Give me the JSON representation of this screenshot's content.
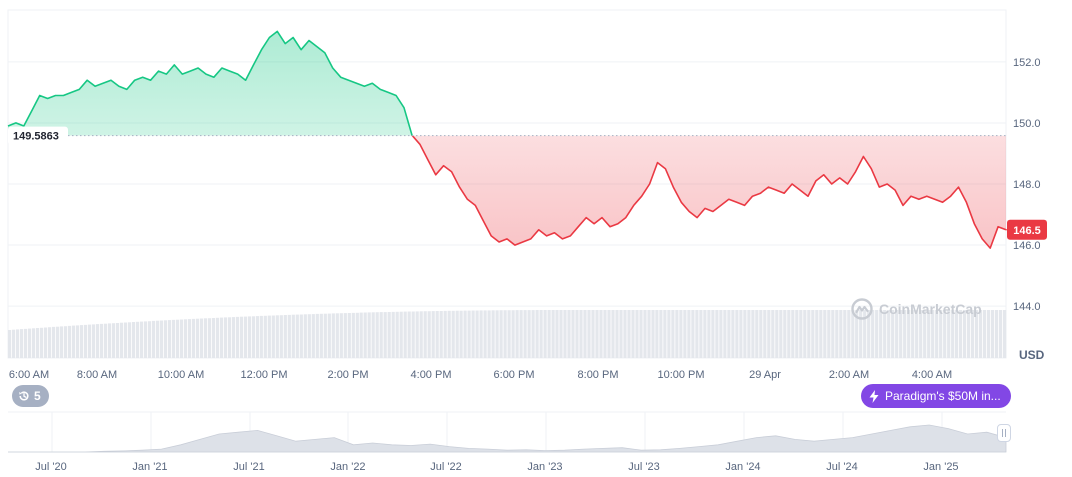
{
  "chart_data": {
    "type": "area",
    "currency": "USD",
    "y_axis": {
      "ticks": [
        144.0,
        146.0,
        148.0,
        150.0,
        152.0
      ],
      "tick_labels": [
        "144.0",
        "146.0",
        "148.0",
        "150.0",
        "152.0"
      ],
      "range": [
        142.3,
        153.7
      ]
    },
    "x_axis": {
      "tick_labels": [
        "6:00 AM",
        "8:00 AM",
        "10:00 AM",
        "12:00 PM",
        "2:00 PM",
        "4:00 PM",
        "6:00 PM",
        "8:00 PM",
        "10:00 PM",
        "29 Apr",
        "2:00 AM",
        "4:00 AM"
      ]
    },
    "reference_price": 149.5863,
    "reference_label": "149.5863",
    "current_price": 146.5,
    "current_label": "146.5",
    "colors": {
      "above": "#16c784",
      "below": "#ea3943",
      "grid": "#eff2f5",
      "volume": "#e4e7ec",
      "navigator": "#dde1e8"
    },
    "series": [
      {
        "values": [
          149.9,
          150.0,
          149.9,
          150.4,
          150.9,
          150.8,
          150.9,
          150.9,
          151.0,
          151.1,
          151.4,
          151.2,
          151.3,
          151.4,
          151.2,
          151.1,
          151.4,
          151.5,
          151.4,
          151.7,
          151.6,
          151.9,
          151.6,
          151.7,
          151.8,
          151.6,
          151.5,
          151.8,
          151.7,
          151.6,
          151.4,
          151.9,
          152.4,
          152.8,
          153.0,
          152.6,
          152.8,
          152.4,
          152.7,
          152.5,
          152.3,
          151.8,
          151.5,
          151.4,
          151.3,
          151.2,
          151.3,
          151.1,
          151.0,
          150.9,
          150.5,
          149.6,
          149.3,
          148.8,
          148.3,
          148.6,
          148.4,
          147.9,
          147.5,
          147.3,
          146.8,
          146.3,
          146.1,
          146.2,
          146.0,
          146.1,
          146.2,
          146.5,
          146.3,
          146.4,
          146.2,
          146.3,
          146.6,
          146.9,
          146.7,
          146.9,
          146.6,
          146.7,
          146.9,
          147.3,
          147.6,
          148.0,
          148.7,
          148.5,
          147.9,
          147.4,
          147.1,
          146.9,
          147.2,
          147.1,
          147.3,
          147.5,
          147.4,
          147.3,
          147.6,
          147.7,
          147.9,
          147.8,
          147.7,
          148.0,
          147.8,
          147.6,
          148.1,
          148.3,
          148.0,
          148.2,
          148.0,
          148.4,
          148.9,
          148.5,
          147.9,
          148.0,
          147.8,
          147.3,
          147.6,
          147.5,
          147.6,
          147.5,
          147.4,
          147.6,
          147.9,
          147.4,
          146.7,
          146.2,
          145.9,
          146.6,
          146.5
        ]
      }
    ],
    "volume": {
      "start": 0.45,
      "end": 0.78
    },
    "navigator": {
      "tick_labels": [
        "Jul '20",
        "Jan '21",
        "Jul '21",
        "Jan '22",
        "Jul '22",
        "Jan '23",
        "Jul '23",
        "Jan '24",
        "Jul '24",
        "Jan '25"
      ],
      "values": [
        0,
        0,
        0,
        0,
        0,
        0.02,
        0.03,
        0.05,
        0.08,
        0.2,
        0.35,
        0.5,
        0.55,
        0.6,
        0.45,
        0.3,
        0.35,
        0.4,
        0.2,
        0.25,
        0.2,
        0.18,
        0.22,
        0.15,
        0.1,
        0.08,
        0.05,
        0.06,
        0.04,
        0.05,
        0.08,
        0.1,
        0.12,
        0.05,
        0.06,
        0.1,
        0.15,
        0.2,
        0.3,
        0.4,
        0.45,
        0.35,
        0.3,
        0.35,
        0.4,
        0.5,
        0.6,
        0.7,
        0.75,
        0.65,
        0.5,
        0.55,
        0.4
      ]
    }
  },
  "history_badge": {
    "count": "5",
    "icon": "history-icon"
  },
  "news_badge": {
    "text": "Paradigm's $50M in...",
    "icon": "bolt-icon"
  },
  "watermark": {
    "text": "CoinMarketCap",
    "icon": "coinmarketcap-logo-icon"
  },
  "axis_unit": "USD"
}
